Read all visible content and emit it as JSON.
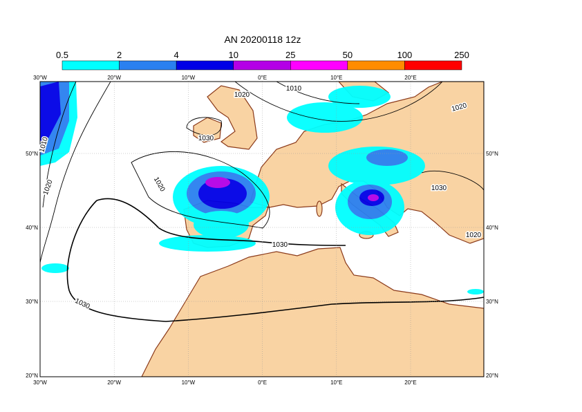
{
  "title": "AN  20200118 12z",
  "colorbar": {
    "labels": [
      "0.5",
      "2",
      "4",
      "10",
      "25",
      "50",
      "100",
      "250"
    ],
    "colors": [
      "#00ffff",
      "#2a80f0",
      "#0000e6",
      "#b400e6",
      "#ff00ff",
      "#ff8c00",
      "#ff0000"
    ]
  },
  "lon_labels": [
    "30°W",
    "20°W",
    "10°W",
    "0°E",
    "10°E",
    "20°E"
  ],
  "lat_labels": [
    "50°N",
    "40°N",
    "30°N",
    "20°N"
  ],
  "contour_labels": [
    "1020",
    "1010",
    "1030",
    "1020",
    "1010",
    "1020",
    "1020",
    "1030",
    "1030",
    "1020",
    "1030"
  ]
}
